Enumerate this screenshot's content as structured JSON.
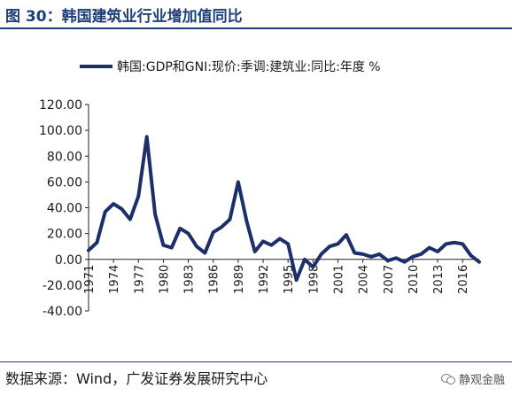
{
  "header": {
    "title": "图 30：韩国建筑业行业增加值同比"
  },
  "footer": {
    "source": "数据来源：Wind，广发证券发展研究中心",
    "watermark": "静观金融",
    "watermark_icon": "wechat-icon"
  },
  "colors": {
    "accent": "#1f3f7a",
    "series": "#1c2f6b"
  },
  "chart_data": {
    "type": "line",
    "title": "",
    "xlabel": "",
    "ylabel": "",
    "legend": {
      "position": "top",
      "entries": [
        "韩国:GDP和GNI:现价:季调:建筑业:同比:年度 %"
      ]
    },
    "ylim": [
      -40,
      120
    ],
    "yticks": [
      -40,
      -20,
      0,
      20,
      40,
      60,
      80,
      100,
      120
    ],
    "ytick_labels": [
      "-40.00",
      "-20.00",
      "0.00",
      "20.00",
      "40.00",
      "60.00",
      "80.00",
      "100.00",
      "120.00"
    ],
    "xlim": [
      1971,
      2018
    ],
    "xticks": [
      1971,
      1974,
      1977,
      1980,
      1983,
      1986,
      1989,
      1992,
      1995,
      1998,
      2001,
      2004,
      2007,
      2010,
      2013,
      2016
    ],
    "xtick_labels": [
      "1971",
      "1974",
      "1977",
      "1980",
      "1983",
      "1986",
      "1989",
      "1992",
      "1995",
      "1998",
      "2001",
      "2004",
      "2007",
      "2010",
      "2013",
      "2016"
    ],
    "grid": false,
    "series": [
      {
        "name": "韩国:GDP和GNI:现价:季调:建筑业:同比:年度 %",
        "x": [
          1971,
          1972,
          1973,
          1974,
          1975,
          1976,
          1977,
          1978,
          1979,
          1980,
          1981,
          1982,
          1983,
          1984,
          1985,
          1986,
          1987,
          1988,
          1989,
          1990,
          1991,
          1992,
          1993,
          1994,
          1995,
          1996,
          1997,
          1998,
          1999,
          2000,
          2001,
          2002,
          2003,
          2004,
          2005,
          2006,
          2007,
          2008,
          2009,
          2010,
          2011,
          2012,
          2013,
          2014,
          2015,
          2016,
          2017,
          2018
        ],
        "values": [
          7,
          13,
          37,
          43,
          39,
          31,
          49,
          95,
          35,
          11,
          9,
          24,
          20,
          10,
          5,
          21,
          25,
          31,
          60,
          30,
          6,
          14,
          11,
          16,
          12,
          -16,
          0,
          -6,
          4,
          10,
          12,
          19,
          5,
          4,
          2,
          4,
          -1,
          1,
          -2,
          2,
          4,
          9,
          6,
          12,
          13,
          12,
          3,
          -2
        ]
      }
    ]
  }
}
